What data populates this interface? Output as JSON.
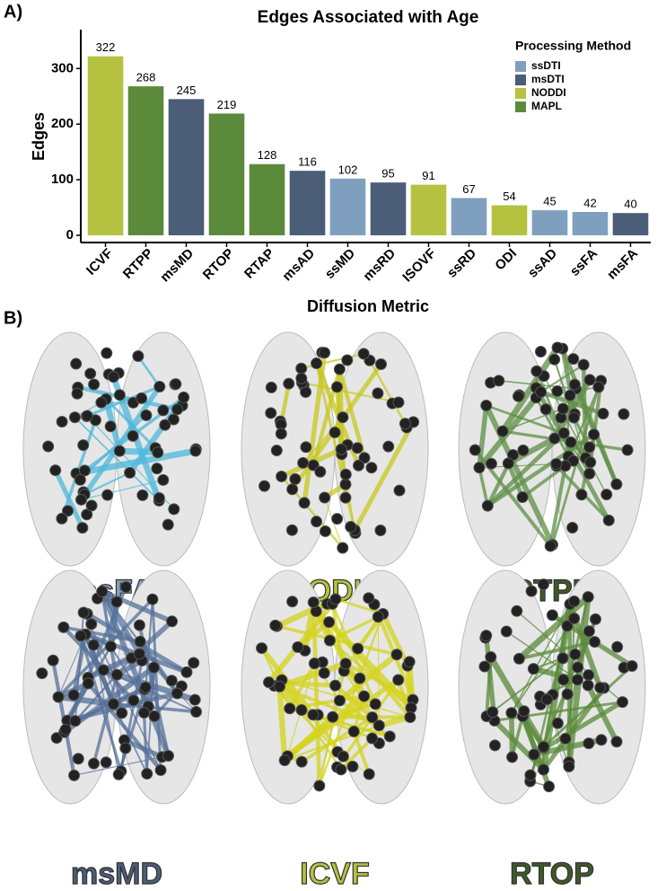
{
  "chart_data": {
    "type": "bar",
    "panel_label": "A)",
    "title": "Edges Associated with Age",
    "x_label": "Diffusion Metric",
    "y_label": "Edges",
    "legend_title": "Processing Method",
    "categories": [
      "ICVF",
      "RTPP",
      "msMD",
      "RTOP",
      "RTAP",
      "msAD",
      "ssMD",
      "msRD",
      "ISOVF",
      "ssRD",
      "ODI",
      "ssAD",
      "ssFA",
      "msFA"
    ],
    "series": [
      {
        "name": "ssDTI",
        "color": "#7f9fbf",
        "values": [
          null,
          null,
          null,
          null,
          null,
          null,
          102,
          null,
          null,
          67,
          null,
          45,
          42,
          null
        ]
      },
      {
        "name": "msDTI",
        "color": "#4b5d77",
        "values": [
          null,
          null,
          245,
          null,
          null,
          116,
          null,
          95,
          null,
          null,
          null,
          null,
          null,
          40
        ]
      },
      {
        "name": "NODDI",
        "color": "#b4c23f",
        "values": [
          322,
          null,
          null,
          null,
          null,
          null,
          null,
          null,
          91,
          null,
          54,
          null,
          null,
          null
        ]
      },
      {
        "name": "MAPL",
        "color": "#5a8a3a",
        "values": [
          null,
          268,
          null,
          219,
          128,
          null,
          null,
          null,
          null,
          null,
          null,
          null,
          null,
          null
        ]
      }
    ],
    "ylim": [
      -13,
      370
    ],
    "yticks": [
      0,
      100,
      200,
      300
    ],
    "grid": false
  },
  "panel_b": {
    "label": "B)",
    "brains": [
      {
        "label": "ssFA",
        "color": "#4cb8dc",
        "text_color": "#7f9fbf"
      },
      {
        "label": "ODI",
        "color": "#c8c81e",
        "text_color": "#b4c23f"
      },
      {
        "label": "RTPP",
        "color": "#5f8f45",
        "text_color": "#3d5a2a"
      },
      {
        "label": "msMD",
        "color": "#56719a",
        "text_color": "#4b5d77"
      },
      {
        "label": "ICVF",
        "color": "#d4d41e",
        "text_color": "#b4c23f"
      },
      {
        "label": "RTOP",
        "color": "#5a8a3a",
        "text_color": "#3d5a2a"
      }
    ]
  }
}
